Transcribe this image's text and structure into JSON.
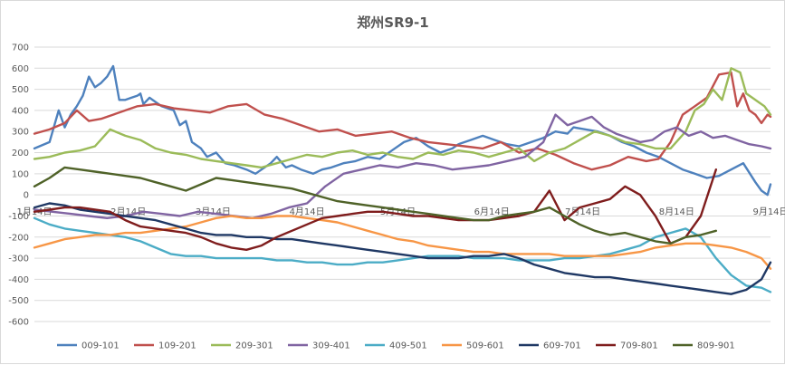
{
  "chart_data": {
    "type": "line",
    "title": "郑州SR9-1",
    "ylim": [
      -600,
      700
    ],
    "y_ticks": [
      "700",
      "600",
      "500",
      "400",
      "300",
      "200",
      "100",
      "0",
      "-100",
      "-200",
      "-300",
      "-400",
      "-500",
      "-600"
    ],
    "y_tick_values": [
      700,
      600,
      500,
      400,
      300,
      200,
      100,
      0,
      -100,
      -200,
      -300,
      -400,
      -500,
      -600
    ],
    "x_tick_labels": [
      "1月14日",
      "2月14日",
      "3月14日",
      "4月14日",
      "5月14日",
      "6月14日",
      "7月14日",
      "8月14日",
      "9月14日"
    ],
    "x_tick_positions": [
      0,
      31,
      59,
      90,
      120,
      151,
      181,
      212,
      243
    ],
    "xlim": [
      0,
      243
    ],
    "grid": true,
    "legend_position": "bottom",
    "series": [
      {
        "name": "009-101",
        "color": "#4e81bd",
        "x": [
          0,
          5,
          8,
          10,
          12,
          14,
          16,
          18,
          20,
          22,
          24,
          26,
          28,
          30,
          32,
          34,
          35,
          36,
          38,
          42,
          46,
          48,
          50,
          52,
          55,
          57,
          60,
          63,
          66,
          70,
          73,
          78,
          80,
          83,
          85,
          88,
          92,
          95,
          98,
          102,
          106,
          110,
          114,
          118,
          122,
          126,
          130,
          134,
          138,
          140,
          144,
          148,
          152,
          156,
          160,
          164,
          168,
          172,
          176,
          178,
          182,
          186,
          190,
          194,
          198,
          202,
          206,
          210,
          214,
          218,
          222,
          226,
          230,
          234,
          238,
          240,
          242,
          243
        ],
        "y": [
          220,
          250,
          400,
          320,
          380,
          420,
          470,
          560,
          510,
          530,
          560,
          610,
          450,
          450,
          460,
          470,
          480,
          430,
          460,
          420,
          400,
          330,
          350,
          250,
          220,
          180,
          200,
          150,
          140,
          120,
          100,
          150,
          180,
          130,
          140,
          120,
          100,
          120,
          130,
          150,
          160,
          180,
          170,
          210,
          250,
          270,
          230,
          200,
          220,
          240,
          260,
          280,
          260,
          240,
          230,
          250,
          270,
          300,
          290,
          320,
          310,
          300,
          280,
          250,
          230,
          200,
          180,
          150,
          120,
          100,
          80,
          90,
          120,
          150,
          60,
          20,
          0,
          50
        ]
      },
      {
        "name": "109-201",
        "color": "#c0504d",
        "x": [
          0,
          5,
          10,
          14,
          18,
          22,
          26,
          30,
          34,
          40,
          46,
          52,
          58,
          64,
          70,
          76,
          82,
          88,
          94,
          100,
          106,
          112,
          118,
          124,
          130,
          136,
          142,
          148,
          154,
          160,
          166,
          172,
          178,
          184,
          190,
          196,
          202,
          206,
          210,
          214,
          218,
          222,
          226,
          230,
          232,
          234,
          236,
          238,
          240,
          242,
          243
        ],
        "y": [
          290,
          310,
          340,
          400,
          350,
          360,
          380,
          400,
          420,
          430,
          410,
          400,
          390,
          420,
          430,
          380,
          360,
          330,
          300,
          310,
          280,
          290,
          300,
          270,
          250,
          240,
          230,
          220,
          250,
          200,
          220,
          190,
          150,
          120,
          140,
          180,
          160,
          170,
          250,
          380,
          420,
          460,
          570,
          580,
          420,
          480,
          400,
          380,
          340,
          380,
          370
        ]
      },
      {
        "name": "209-301",
        "color": "#9bbb59",
        "x": [
          0,
          5,
          10,
          15,
          20,
          25,
          30,
          35,
          40,
          45,
          50,
          55,
          60,
          65,
          70,
          75,
          80,
          85,
          90,
          95,
          100,
          105,
          110,
          115,
          120,
          125,
          130,
          135,
          140,
          145,
          150,
          155,
          160,
          165,
          170,
          175,
          180,
          185,
          190,
          195,
          200,
          205,
          210,
          215,
          218,
          221,
          224,
          227,
          230,
          233,
          235,
          237,
          239,
          241,
          243
        ],
        "y": [
          170,
          180,
          200,
          210,
          230,
          310,
          280,
          260,
          220,
          200,
          190,
          170,
          160,
          150,
          140,
          130,
          150,
          170,
          190,
          180,
          200,
          210,
          190,
          200,
          180,
          170,
          200,
          190,
          210,
          200,
          180,
          200,
          220,
          160,
          200,
          220,
          260,
          300,
          280,
          250,
          240,
          220,
          220,
          300,
          400,
          430,
          500,
          450,
          600,
          580,
          480,
          460,
          440,
          420,
          380
        ]
      },
      {
        "name": "309-401",
        "color": "#8064a2",
        "x": [
          0,
          6,
          12,
          18,
          24,
          30,
          36,
          42,
          48,
          54,
          60,
          66,
          72,
          78,
          84,
          90,
          96,
          102,
          108,
          114,
          120,
          126,
          132,
          138,
          144,
          150,
          156,
          162,
          168,
          172,
          176,
          180,
          184,
          188,
          192,
          196,
          200,
          204,
          208,
          212,
          216,
          220,
          224,
          228,
          232,
          236,
          240,
          243
        ],
        "y": [
          -70,
          -80,
          -90,
          -100,
          -110,
          -100,
          -80,
          -90,
          -100,
          -80,
          -90,
          -100,
          -110,
          -90,
          -60,
          -40,
          40,
          100,
          120,
          140,
          130,
          150,
          140,
          120,
          130,
          140,
          160,
          180,
          250,
          380,
          330,
          350,
          370,
          320,
          290,
          270,
          250,
          260,
          300,
          320,
          280,
          300,
          270,
          280,
          260,
          240,
          230,
          220
        ]
      },
      {
        "name": "409-501",
        "color": "#4bacc6",
        "x": [
          0,
          5,
          10,
          15,
          20,
          25,
          30,
          35,
          40,
          45,
          50,
          55,
          60,
          65,
          70,
          75,
          80,
          85,
          90,
          95,
          100,
          105,
          110,
          115,
          120,
          125,
          130,
          135,
          140,
          145,
          150,
          155,
          160,
          165,
          170,
          175,
          180,
          185,
          190,
          195,
          200,
          205,
          210,
          215,
          220,
          225,
          230,
          235,
          240,
          243
        ],
        "y": [
          -110,
          -140,
          -160,
          -170,
          -180,
          -190,
          -200,
          -220,
          -250,
          -280,
          -290,
          -290,
          -300,
          -300,
          -300,
          -300,
          -310,
          -310,
          -320,
          -320,
          -330,
          -330,
          -320,
          -320,
          -310,
          -300,
          -290,
          -290,
          -290,
          -300,
          -300,
          -300,
          -310,
          -310,
          -310,
          -300,
          -300,
          -290,
          -280,
          -260,
          -240,
          -200,
          -180,
          -160,
          -200,
          -300,
          -380,
          -430,
          -440,
          -460
        ]
      },
      {
        "name": "509-601",
        "color": "#f79646",
        "x": [
          0,
          5,
          10,
          15,
          20,
          25,
          30,
          35,
          40,
          45,
          50,
          55,
          60,
          65,
          70,
          75,
          80,
          85,
          90,
          95,
          100,
          105,
          110,
          115,
          120,
          125,
          130,
          135,
          140,
          145,
          150,
          155,
          160,
          165,
          170,
          175,
          180,
          185,
          190,
          195,
          200,
          205,
          210,
          215,
          220,
          225,
          230,
          235,
          240,
          243
        ],
        "y": [
          -250,
          -230,
          -210,
          -200,
          -190,
          -190,
          -180,
          -180,
          -170,
          -160,
          -150,
          -130,
          -110,
          -100,
          -110,
          -110,
          -100,
          -100,
          -110,
          -120,
          -130,
          -150,
          -170,
          -190,
          -210,
          -220,
          -240,
          -250,
          -260,
          -270,
          -270,
          -280,
          -280,
          -280,
          -280,
          -290,
          -290,
          -290,
          -290,
          -280,
          -270,
          -250,
          -240,
          -230,
          -230,
          -240,
          -250,
          -270,
          -300,
          -350
        ]
      },
      {
        "name": "609-701",
        "color": "#1f3864",
        "x": [
          0,
          5,
          10,
          15,
          20,
          25,
          30,
          35,
          40,
          45,
          50,
          55,
          60,
          65,
          70,
          75,
          80,
          85,
          90,
          95,
          100,
          105,
          110,
          115,
          120,
          125,
          130,
          135,
          140,
          145,
          150,
          155,
          160,
          165,
          170,
          175,
          180,
          185,
          190,
          195,
          200,
          205,
          210,
          215,
          220,
          225,
          230,
          235,
          240,
          243
        ],
        "y": [
          -60,
          -40,
          -50,
          -70,
          -80,
          -90,
          -100,
          -110,
          -120,
          -140,
          -160,
          -180,
          -190,
          -190,
          -200,
          -200,
          -210,
          -210,
          -220,
          -230,
          -240,
          -250,
          -260,
          -270,
          -280,
          -290,
          -300,
          -300,
          -300,
          -290,
          -290,
          -280,
          -300,
          -330,
          -350,
          -370,
          -380,
          -390,
          -390,
          -400,
          -410,
          -420,
          -430,
          -440,
          -450,
          -460,
          -470,
          -450,
          -400,
          -320
        ]
      },
      {
        "name": "709-801",
        "color": "#7f1d1d",
        "x": [
          0,
          5,
          10,
          15,
          20,
          25,
          30,
          35,
          40,
          45,
          50,
          55,
          60,
          65,
          70,
          75,
          80,
          85,
          90,
          95,
          100,
          105,
          110,
          115,
          120,
          125,
          130,
          135,
          140,
          145,
          150,
          155,
          160,
          165,
          170,
          175,
          180,
          185,
          190,
          195,
          200,
          205,
          210,
          215,
          220,
          225
        ],
        "y": [
          -80,
          -70,
          -60,
          -60,
          -70,
          -80,
          -120,
          -150,
          -160,
          -170,
          -180,
          -200,
          -230,
          -250,
          -260,
          -240,
          -200,
          -170,
          -140,
          -110,
          -100,
          -90,
          -80,
          -80,
          -90,
          -100,
          -100,
          -110,
          -120,
          -120,
          -120,
          -110,
          -100,
          -80,
          20,
          -120,
          -60,
          -40,
          -20,
          40,
          0,
          -100,
          -230,
          -200,
          -100,
          120
        ]
      },
      {
        "name": "809-901",
        "color": "#4f6228",
        "x": [
          0,
          5,
          10,
          15,
          20,
          25,
          30,
          35,
          40,
          45,
          50,
          55,
          60,
          65,
          70,
          75,
          80,
          85,
          90,
          95,
          100,
          105,
          110,
          115,
          120,
          125,
          130,
          135,
          140,
          145,
          150,
          155,
          160,
          165,
          170,
          175,
          180,
          185,
          190,
          195,
          200,
          205,
          210,
          215,
          220,
          225
        ],
        "y": [
          40,
          80,
          130,
          120,
          110,
          100,
          90,
          80,
          60,
          40,
          20,
          50,
          80,
          70,
          60,
          50,
          40,
          30,
          10,
          -10,
          -30,
          -40,
          -50,
          -60,
          -70,
          -80,
          -90,
          -100,
          -110,
          -120,
          -120,
          -100,
          -90,
          -80,
          -60,
          -100,
          -140,
          -170,
          -190,
          -180,
          -200,
          -220,
          -230,
          -200,
          -190,
          -170
        ]
      }
    ]
  }
}
